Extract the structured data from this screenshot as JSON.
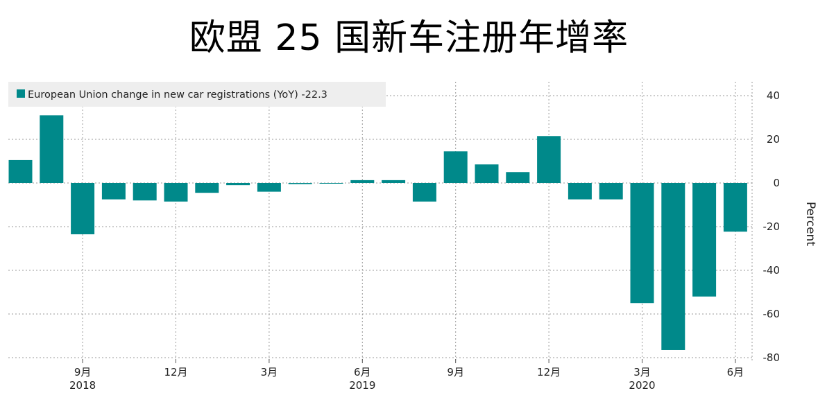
{
  "title": "欧盟 25 国新车注册年增率",
  "colors": {
    "bar": "#00898a",
    "grid": "#9a9a9a",
    "legend_bg": "#eeeeee"
  },
  "chart_data": {
    "type": "bar",
    "title": "欧盟 25 国新车注册年增率",
    "ylabel": "Percent",
    "ylim": [
      -80,
      40
    ],
    "yticks": [
      40,
      20,
      0,
      -20,
      -40,
      -60,
      -80
    ],
    "grid": true,
    "legend_position": "top-left",
    "legend": "European Union change in new car registrations (YoY) -22.3",
    "categories": [
      "2018-07",
      "2018-08",
      "2018-09",
      "2018-10",
      "2018-11",
      "2018-12",
      "2019-01",
      "2019-02",
      "2019-03",
      "2019-04",
      "2019-05",
      "2019-06",
      "2019-07",
      "2019-08",
      "2019-09",
      "2019-10",
      "2019-11",
      "2019-12",
      "2020-01",
      "2020-02",
      "2020-03",
      "2020-04",
      "2020-05",
      "2020-06"
    ],
    "series": [
      {
        "name": "European Union change in new car registrations (YoY)",
        "values": [
          10.5,
          31,
          -23.5,
          -7.5,
          -8,
          -8.5,
          -4.5,
          -1,
          -4,
          -0.5,
          -0.3,
          1.3,
          1.3,
          -8.5,
          14.5,
          8.5,
          5,
          21.5,
          -7.5,
          -7.5,
          -55,
          -76.5,
          -52,
          -22.3
        ]
      }
    ],
    "x_tick_labels": [
      {
        "index": 2,
        "label": "9月"
      },
      {
        "index": 5,
        "label": "12月"
      },
      {
        "index": 8,
        "label": "3月"
      },
      {
        "index": 11,
        "label": "6月"
      },
      {
        "index": 14,
        "label": "9月"
      },
      {
        "index": 17,
        "label": "12月"
      },
      {
        "index": 20,
        "label": "3月"
      },
      {
        "index": 23,
        "label": "6月"
      }
    ],
    "year_labels": [
      {
        "index": 2,
        "label": "2018"
      },
      {
        "index": 11,
        "label": "2019"
      },
      {
        "index": 20,
        "label": "2020"
      }
    ]
  }
}
